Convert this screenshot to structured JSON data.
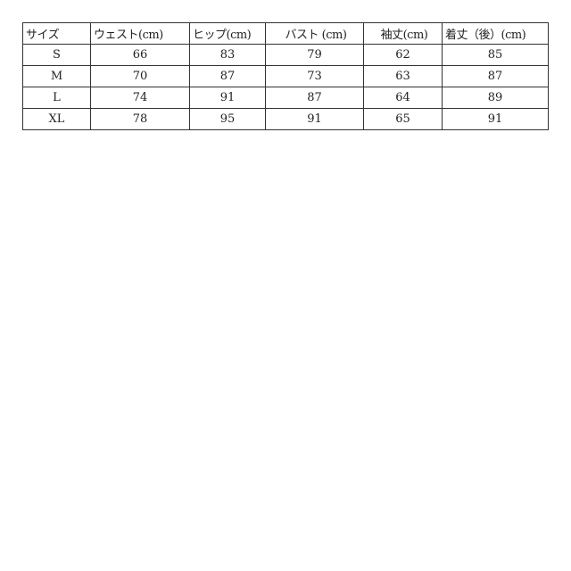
{
  "headers": [
    "サイズ",
    "ウェスト(cm)",
    "ヒップ(cm)",
    "バスト (cm)",
    "袖丈(cm)",
    "着丈（後）(cm)"
  ],
  "rows": [
    [
      "S",
      "66",
      "83",
      "79",
      "62",
      "85"
    ],
    [
      "M",
      "70",
      "87",
      "73",
      "63",
      "87"
    ],
    [
      "L",
      "74",
      "91",
      "87",
      "64",
      "89"
    ],
    [
      "XL",
      "78",
      "95",
      "91",
      "65",
      "91"
    ]
  ]
}
